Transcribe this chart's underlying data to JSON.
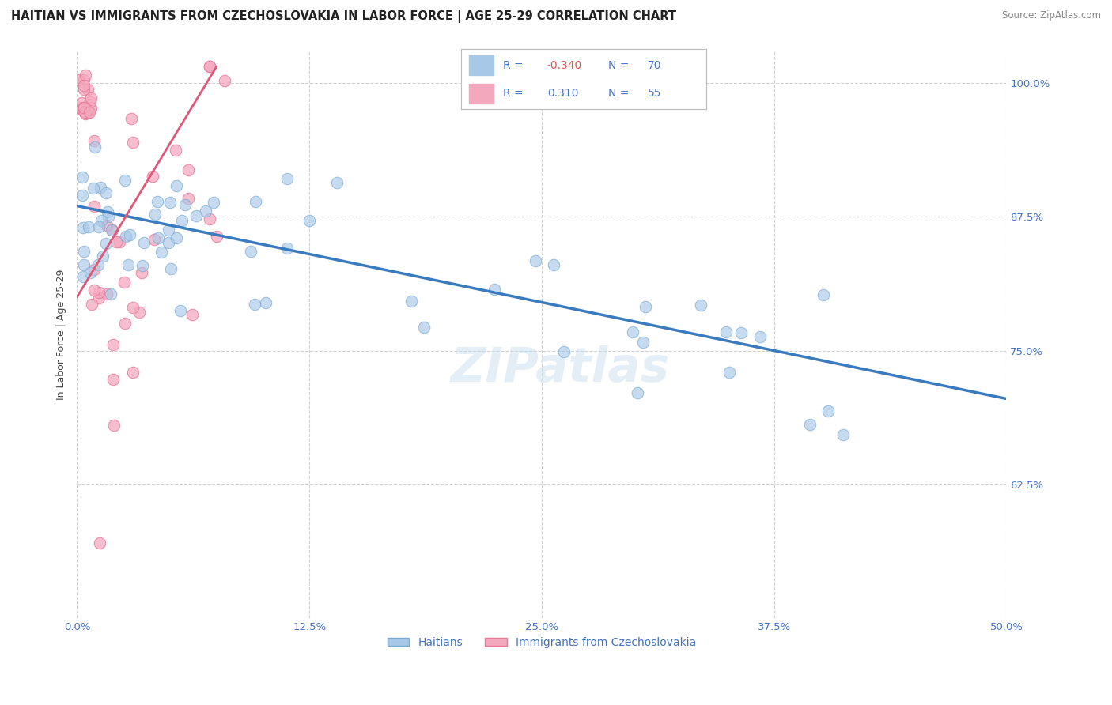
{
  "title": "HAITIAN VS IMMIGRANTS FROM CZECHOSLOVAKIA IN LABOR FORCE | AGE 25-29 CORRELATION CHART",
  "source": "Source: ZipAtlas.com",
  "xlim": [
    0.0,
    50.0
  ],
  "ylim": [
    50.0,
    103.0
  ],
  "blue_R": -0.34,
  "blue_N": 70,
  "pink_R": 0.31,
  "pink_N": 55,
  "blue_color": "#a8c8e8",
  "blue_edge_color": "#7aaad0",
  "blue_line_color": "#3a7bbf",
  "pink_color": "#f4a8be",
  "pink_edge_color": "#e87898",
  "pink_line_color": "#e05878",
  "blue_line_x0": 0.0,
  "blue_line_y0": 88.5,
  "blue_line_x1": 50.0,
  "blue_line_y1": 70.5,
  "pink_line_x0": 0.0,
  "pink_line_y0": 80.0,
  "pink_line_x1": 7.5,
  "pink_line_y1": 101.5,
  "watermark": "ZIPatlas",
  "legend_blue_label": "Haitians",
  "legend_pink_label": "Immigrants from Czechoslovakia",
  "ylabel": "In Labor Force | Age 25-29",
  "title_fontsize": 10.5,
  "axis_label_fontsize": 9,
  "tick_fontsize": 9.5,
  "source_fontsize": 8.5,
  "background_color": "#ffffff",
  "grid_color": "#cccccc",
  "label_color": "#4472c4"
}
